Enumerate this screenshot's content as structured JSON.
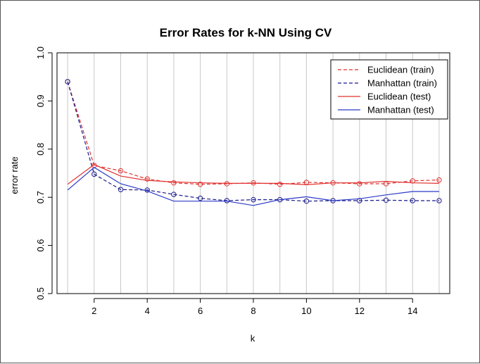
{
  "chart_data": {
    "type": "line",
    "title": "Error Rates for k-NN Using CV",
    "xlabel": "k",
    "ylabel": "error rate",
    "xlim": [
      0.6,
      15.4
    ],
    "ylim": [
      0.5,
      1.0
    ],
    "x_ticks": [
      "2",
      "4",
      "6",
      "8",
      "10",
      "12",
      "14"
    ],
    "x_tick_values": [
      2,
      4,
      6,
      8,
      10,
      12,
      14
    ],
    "y_ticks": [
      "0.5",
      "0.6",
      "0.7",
      "0.8",
      "0.9",
      "1.0"
    ],
    "y_tick_values": [
      0.5,
      0.6,
      0.7,
      0.8,
      0.9,
      1.0
    ],
    "grid": "vertical lines at each k",
    "legend_position": "top-right",
    "x": [
      1,
      2,
      3,
      4,
      5,
      6,
      7,
      8,
      9,
      10,
      11,
      12,
      13,
      14,
      15
    ],
    "series": [
      {
        "name": "Euclidean (train)",
        "color": "#e0302e",
        "dash": true,
        "markers": true,
        "values": [
          0.94,
          0.766,
          0.755,
          0.738,
          0.73,
          0.727,
          0.728,
          0.73,
          0.727,
          0.731,
          0.73,
          0.728,
          0.728,
          0.734,
          0.736
        ]
      },
      {
        "name": "Manhattan (train)",
        "color": "#1a1a8c",
        "dash": true,
        "markers": true,
        "values": [
          0.94,
          0.748,
          0.716,
          0.715,
          0.706,
          0.698,
          0.693,
          0.695,
          0.695,
          0.692,
          0.693,
          0.693,
          0.694,
          0.693,
          0.693
        ]
      },
      {
        "name": "Euclidean (test)",
        "color": "#e0302e",
        "dash": false,
        "markers": false,
        "values": [
          0.727,
          0.768,
          0.744,
          0.735,
          0.732,
          0.73,
          0.729,
          0.729,
          0.729,
          0.726,
          0.73,
          0.73,
          0.733,
          0.73,
          0.729
        ]
      },
      {
        "name": "Manhattan (test)",
        "color": "#2b39c7",
        "dash": false,
        "markers": false,
        "values": [
          0.715,
          0.762,
          0.728,
          0.713,
          0.692,
          0.692,
          0.692,
          0.683,
          0.695,
          0.701,
          0.693,
          0.697,
          0.705,
          0.712,
          0.712
        ]
      }
    ]
  }
}
